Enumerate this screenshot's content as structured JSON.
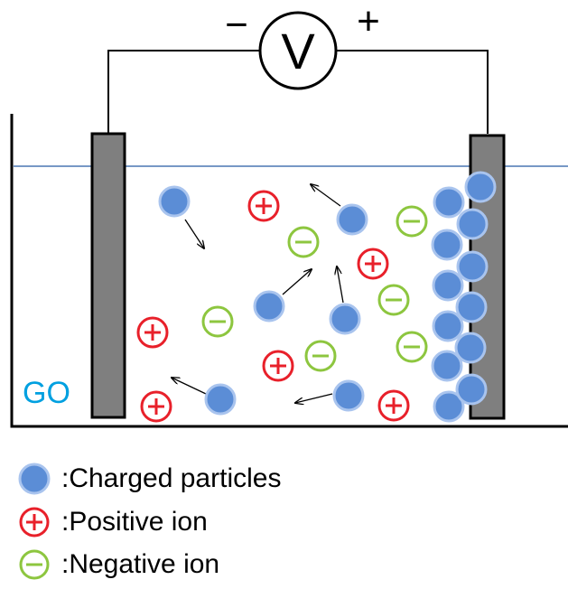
{
  "voltmeter": {
    "symbol": "V",
    "minus": "−",
    "plus": "+"
  },
  "electrode_label": "GO",
  "colors": {
    "particle_fill": "#5b8dd6",
    "particle_stroke": "#a9c4ee",
    "positive_ion": "#e8202a",
    "negative_ion": "#8dc63f",
    "electrode_fill": "#7f7f7f",
    "water_line": "#4a77b4",
    "label": "#00a0e0"
  },
  "legend": [
    {
      "icon": "charged-particle",
      "label": ":Charged particles"
    },
    {
      "icon": "positive-ion",
      "label": ":Positive ion"
    },
    {
      "icon": "negative-ion",
      "label": ":Negative ion"
    }
  ]
}
